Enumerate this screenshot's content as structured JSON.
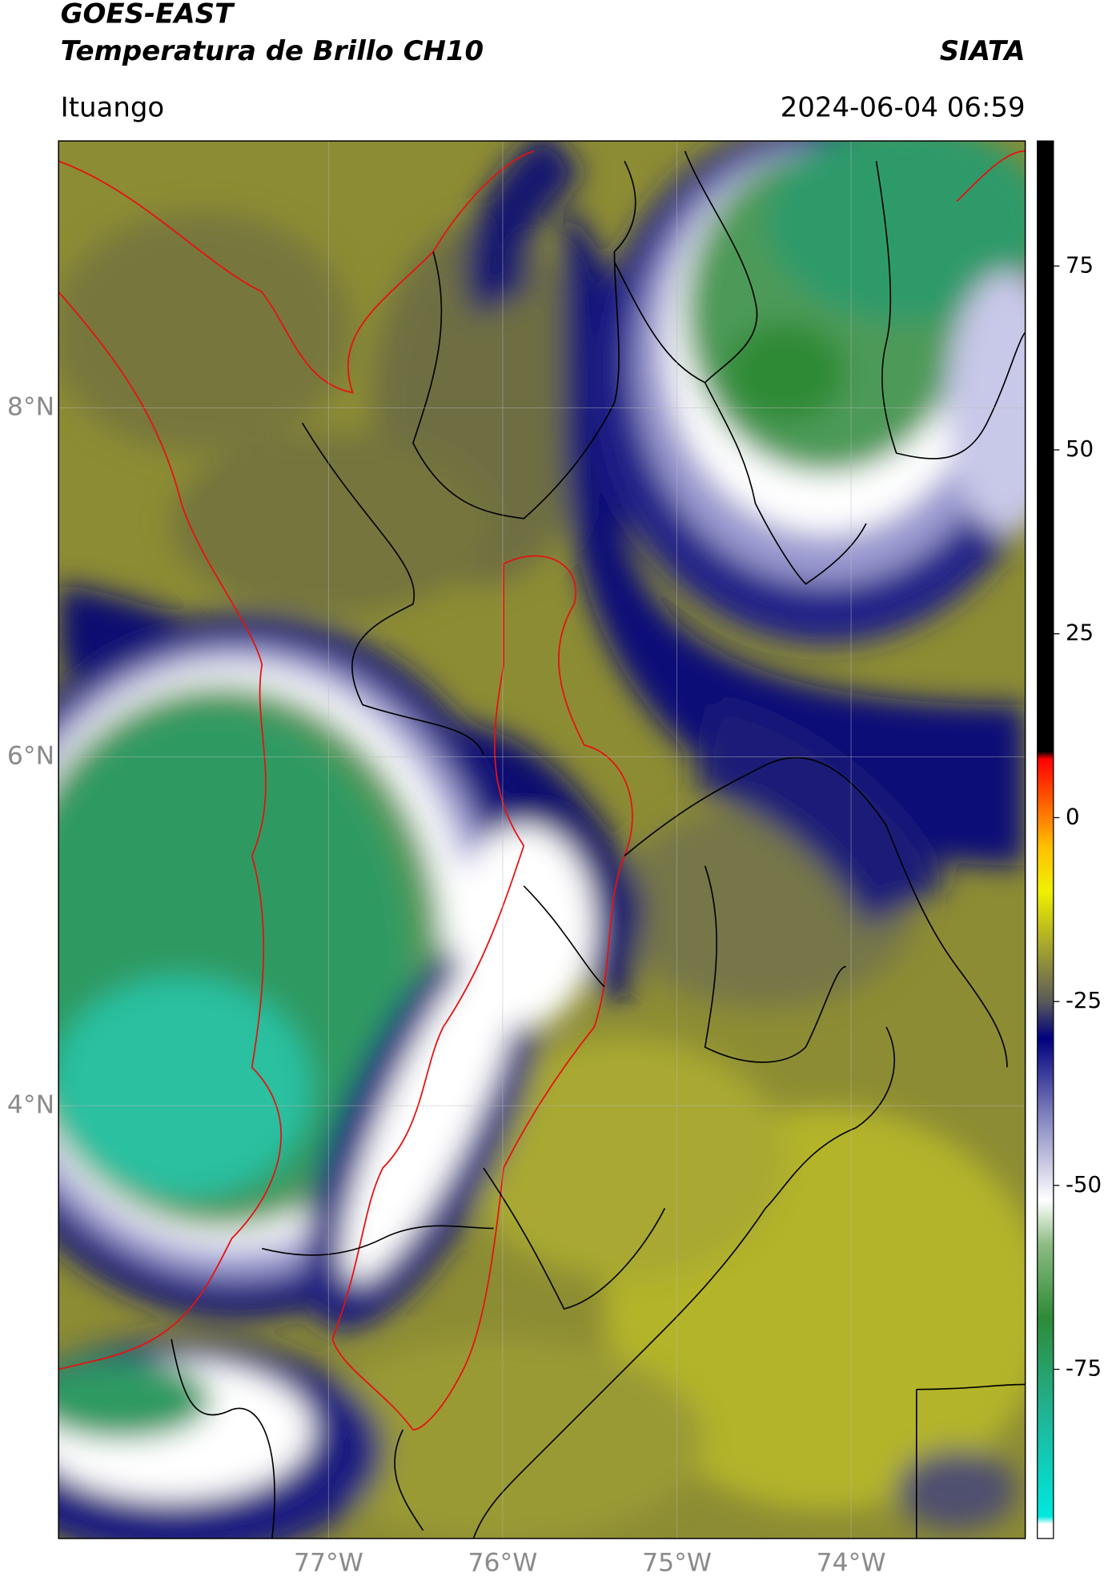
{
  "header": {
    "title": "GOES-EAST",
    "subtitle": "Temperatura de Brillo CH10",
    "brand": "SIATA",
    "location": "Ituango",
    "datetime": "2024-06-04 06:59"
  },
  "map": {
    "xlim": [
      -78.55,
      -73.0
    ],
    "ylim": [
      1.52,
      9.53
    ],
    "xticks": [
      {
        "value": -77,
        "label": "77°W"
      },
      {
        "value": -76,
        "label": "76°W"
      },
      {
        "value": -75,
        "label": "75°W"
      },
      {
        "value": -74,
        "label": "74°W"
      }
    ],
    "yticks": [
      {
        "value": 8,
        "label": "8°N"
      },
      {
        "value": 6,
        "label": "6°N"
      },
      {
        "value": 4,
        "label": "4°N"
      }
    ],
    "grid": true
  },
  "colorbar": {
    "lim": [
      -98,
      92
    ],
    "ticks": [
      75,
      50,
      25,
      0,
      -25,
      -50,
      -75
    ],
    "colormap": [
      {
        "value": -98,
        "color": "#ffffff"
      },
      {
        "value": -96,
        "color": "#ffffff"
      },
      {
        "value": -95,
        "color": "#00e8e0"
      },
      {
        "value": -80,
        "color": "#22b08e"
      },
      {
        "value": -68,
        "color": "#2e8a36"
      },
      {
        "value": -58,
        "color": "#8cbc82"
      },
      {
        "value": -52,
        "color": "#ffffff"
      },
      {
        "value": -40,
        "color": "#7c7cbc"
      },
      {
        "value": -30,
        "color": "#00007e"
      },
      {
        "value": -25,
        "color": "#5a5a5a"
      },
      {
        "value": -18,
        "color": "#a0a030"
      },
      {
        "value": -10,
        "color": "#f0f000"
      },
      {
        "value": -4,
        "color": "#ffc000"
      },
      {
        "value": 2,
        "color": "#ff6000"
      },
      {
        "value": 8,
        "color": "#ff0000"
      },
      {
        "value": 9,
        "color": "#000000"
      },
      {
        "value": 92,
        "color": "#000000"
      }
    ]
  }
}
